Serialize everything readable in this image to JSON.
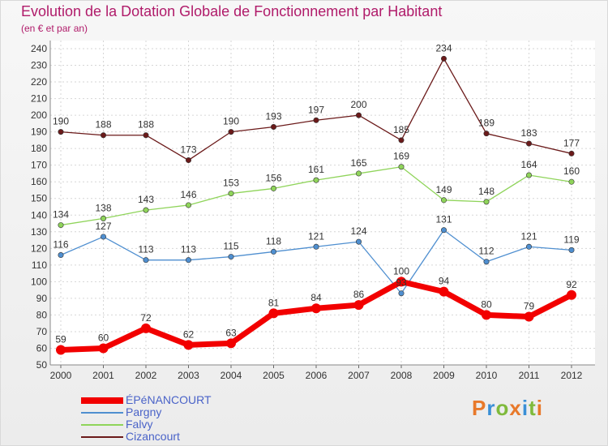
{
  "title": "Evolution de la Dotation Globale de Fonctionnement par Habitant",
  "subtitle": "(en € et par an)",
  "logo": {
    "text": "Proxiti",
    "colors": [
      "#e8792a",
      "#3a8fd6",
      "#7fba3c",
      "#e8792a",
      "#3a8fd6",
      "#7fba3c",
      "#e8792a"
    ]
  },
  "chart_data": {
    "type": "line",
    "x": [
      "2000",
      "2001",
      "2002",
      "2003",
      "2004",
      "2005",
      "2006",
      "2007",
      "2008",
      "2009",
      "2010",
      "2011",
      "2012"
    ],
    "ylim": [
      50,
      240
    ],
    "yticks": [
      50,
      60,
      70,
      80,
      90,
      100,
      110,
      120,
      130,
      140,
      150,
      160,
      170,
      180,
      190,
      200,
      210,
      220,
      230,
      240
    ],
    "grid": true,
    "legend_position": "bottom-left",
    "series": [
      {
        "name": "Cizancourt",
        "color": "#6b1a1a",
        "values": [
          190,
          188,
          188,
          173,
          190,
          193,
          197,
          200,
          185,
          234,
          189,
          183,
          177
        ]
      },
      {
        "name": "Falvy",
        "color": "#8fd45a",
        "values": [
          134,
          138,
          143,
          146,
          153,
          156,
          161,
          165,
          169,
          149,
          148,
          164,
          160
        ]
      },
      {
        "name": "Pargny",
        "color": "#4f8fd0",
        "values": [
          116,
          127,
          113,
          113,
          115,
          118,
          121,
          124,
          93,
          131,
          112,
          121,
          119
        ]
      },
      {
        "name": "ÉPéNANCOURT",
        "color": "#f20000",
        "values": [
          59,
          60,
          72,
          62,
          63,
          81,
          84,
          86,
          100,
          94,
          80,
          79,
          92
        ]
      }
    ],
    "data_labels": {
      "Cizancourt": [
        "190",
        "188",
        "188",
        "173",
        "190",
        "193",
        "197",
        "200",
        "185",
        "234",
        "189",
        "183",
        "177"
      ],
      "Falvy": [
        "134",
        "138",
        "143",
        "146",
        "153",
        "156",
        "161",
        "165",
        "169",
        "149",
        "148",
        "164",
        "160"
      ],
      "Pargny": [
        "116",
        "127",
        "113",
        "113",
        "115",
        "118",
        "121",
        "124",
        "93",
        "131",
        "112",
        "121",
        "119"
      ],
      "ÉPéNANCOURT": [
        "59",
        "60",
        "72",
        "62",
        "63",
        "81",
        "84",
        "86",
        "100",
        "94",
        "80",
        "79",
        "92"
      ]
    }
  },
  "legend": [
    {
      "label": "ÉPéNANCOURT",
      "color": "#f20000",
      "bold": true
    },
    {
      "label": "Pargny",
      "color": "#4f8fd0"
    },
    {
      "label": "Falvy",
      "color": "#8fd45a"
    },
    {
      "label": "Cizancourt",
      "color": "#6b1a1a"
    }
  ]
}
